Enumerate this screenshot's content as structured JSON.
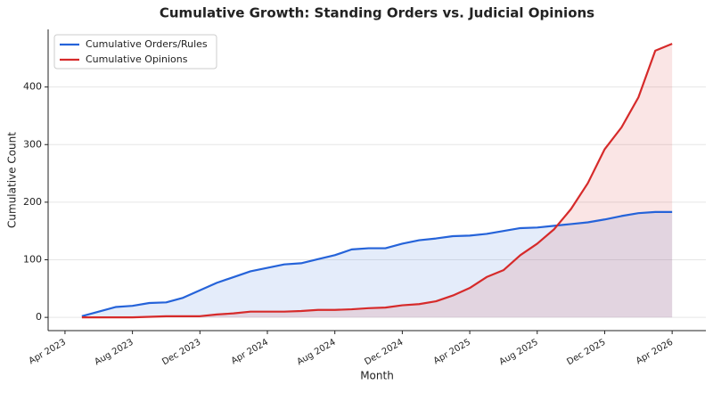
{
  "chart_data": {
    "type": "line",
    "title": "Cumulative Growth: Standing Orders vs. Judicial Opinions",
    "x_label": "Month",
    "y_label": "Cumulative Count",
    "x": [
      "2023-05",
      "2023-06",
      "2023-07",
      "2023-08",
      "2023-09",
      "2023-10",
      "2023-11",
      "2023-12",
      "2024-01",
      "2024-02",
      "2024-03",
      "2024-04",
      "2024-05",
      "2024-06",
      "2024-07",
      "2024-08",
      "2024-09",
      "2024-10",
      "2024-11",
      "2024-12",
      "2025-01",
      "2025-02",
      "2025-03",
      "2025-04",
      "2025-05",
      "2025-06",
      "2025-07",
      "2025-08",
      "2025-09",
      "2025-10",
      "2025-11",
      "2025-12",
      "2026-01",
      "2026-02",
      "2026-03",
      "2026-04"
    ],
    "series": [
      {
        "name": "Cumulative Orders/Rules",
        "color": "#2563d9",
        "fill": "rgba(37,99,217,0.12)",
        "values": [
          2,
          10,
          18,
          20,
          25,
          26,
          34,
          47,
          60,
          70,
          80,
          86,
          92,
          94,
          101,
          108,
          118,
          120,
          120,
          128,
          134,
          137,
          141,
          142,
          145,
          150,
          155,
          156,
          159,
          162,
          165,
          170,
          176,
          181,
          183,
          183
        ]
      },
      {
        "name": "Cumulative Opinions",
        "color": "#d62a2a",
        "fill": "rgba(214,42,42,0.12)",
        "values": [
          0,
          0,
          0,
          0,
          1,
          2,
          2,
          2,
          5,
          7,
          10,
          10,
          10,
          11,
          13,
          13,
          14,
          16,
          17,
          21,
          23,
          28,
          38,
          51,
          70,
          82,
          108,
          128,
          153,
          188,
          233,
          292,
          330,
          382,
          463,
          475
        ]
      }
    ],
    "xlim": [
      "2023-03",
      "2026-06"
    ],
    "xticks": [
      {
        "value": "2023-04",
        "label": "Apr 2023"
      },
      {
        "value": "2023-08",
        "label": "Aug 2023"
      },
      {
        "value": "2023-12",
        "label": "Dec 2023"
      },
      {
        "value": "2024-04",
        "label": "Apr 2024"
      },
      {
        "value": "2024-08",
        "label": "Aug 2024"
      },
      {
        "value": "2024-12",
        "label": "Dec 2024"
      },
      {
        "value": "2025-04",
        "label": "Apr 2025"
      },
      {
        "value": "2025-08",
        "label": "Aug 2025"
      },
      {
        "value": "2025-12",
        "label": "Dec 2025"
      },
      {
        "value": "2026-04",
        "label": "Apr 2026"
      }
    ],
    "ylim": [
      -23,
      500
    ],
    "yticks": [
      0,
      100,
      200,
      300,
      400
    ],
    "grid": true,
    "legend": "upper left"
  }
}
